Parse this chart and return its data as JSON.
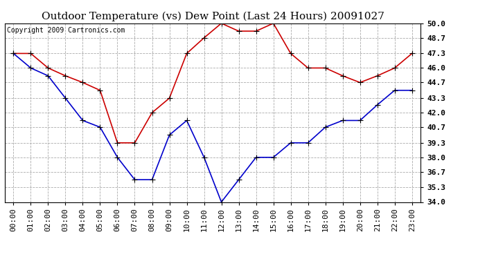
{
  "title": "Outdoor Temperature (vs) Dew Point (Last 24 Hours) 20091027",
  "copyright": "Copyright 2009 Cartronics.com",
  "hours": [
    "00:00",
    "01:00",
    "02:00",
    "03:00",
    "04:00",
    "05:00",
    "06:00",
    "07:00",
    "08:00",
    "09:00",
    "10:00",
    "11:00",
    "12:00",
    "13:00",
    "14:00",
    "15:00",
    "16:00",
    "17:00",
    "18:00",
    "19:00",
    "20:00",
    "21:00",
    "22:00",
    "23:00"
  ],
  "temp": [
    47.3,
    47.3,
    46.0,
    45.3,
    44.7,
    44.0,
    39.3,
    39.3,
    42.0,
    43.3,
    47.3,
    48.7,
    50.0,
    49.3,
    49.3,
    50.0,
    47.3,
    46.0,
    46.0,
    45.3,
    44.7,
    45.3,
    46.0,
    47.3
  ],
  "dew": [
    47.3,
    46.0,
    45.3,
    43.3,
    41.3,
    40.7,
    38.0,
    36.0,
    36.0,
    40.0,
    41.3,
    38.0,
    34.0,
    36.0,
    38.0,
    38.0,
    39.3,
    39.3,
    40.7,
    41.3,
    41.3,
    42.7,
    44.0,
    44.0
  ],
  "temp_color": "#cc0000",
  "dew_color": "#0000cc",
  "bg_color": "#ffffff",
  "plot_bg_color": "#ffffff",
  "grid_color": "#aaaaaa",
  "title_fontsize": 11,
  "copyright_fontsize": 7,
  "tick_fontsize": 8,
  "ylim_min": 34.0,
  "ylim_max": 50.0,
  "yticks": [
    34.0,
    35.3,
    36.7,
    38.0,
    39.3,
    40.7,
    42.0,
    43.3,
    44.7,
    46.0,
    47.3,
    48.7,
    50.0
  ],
  "marker": "+",
  "marker_size": 6,
  "linewidth": 1.2
}
